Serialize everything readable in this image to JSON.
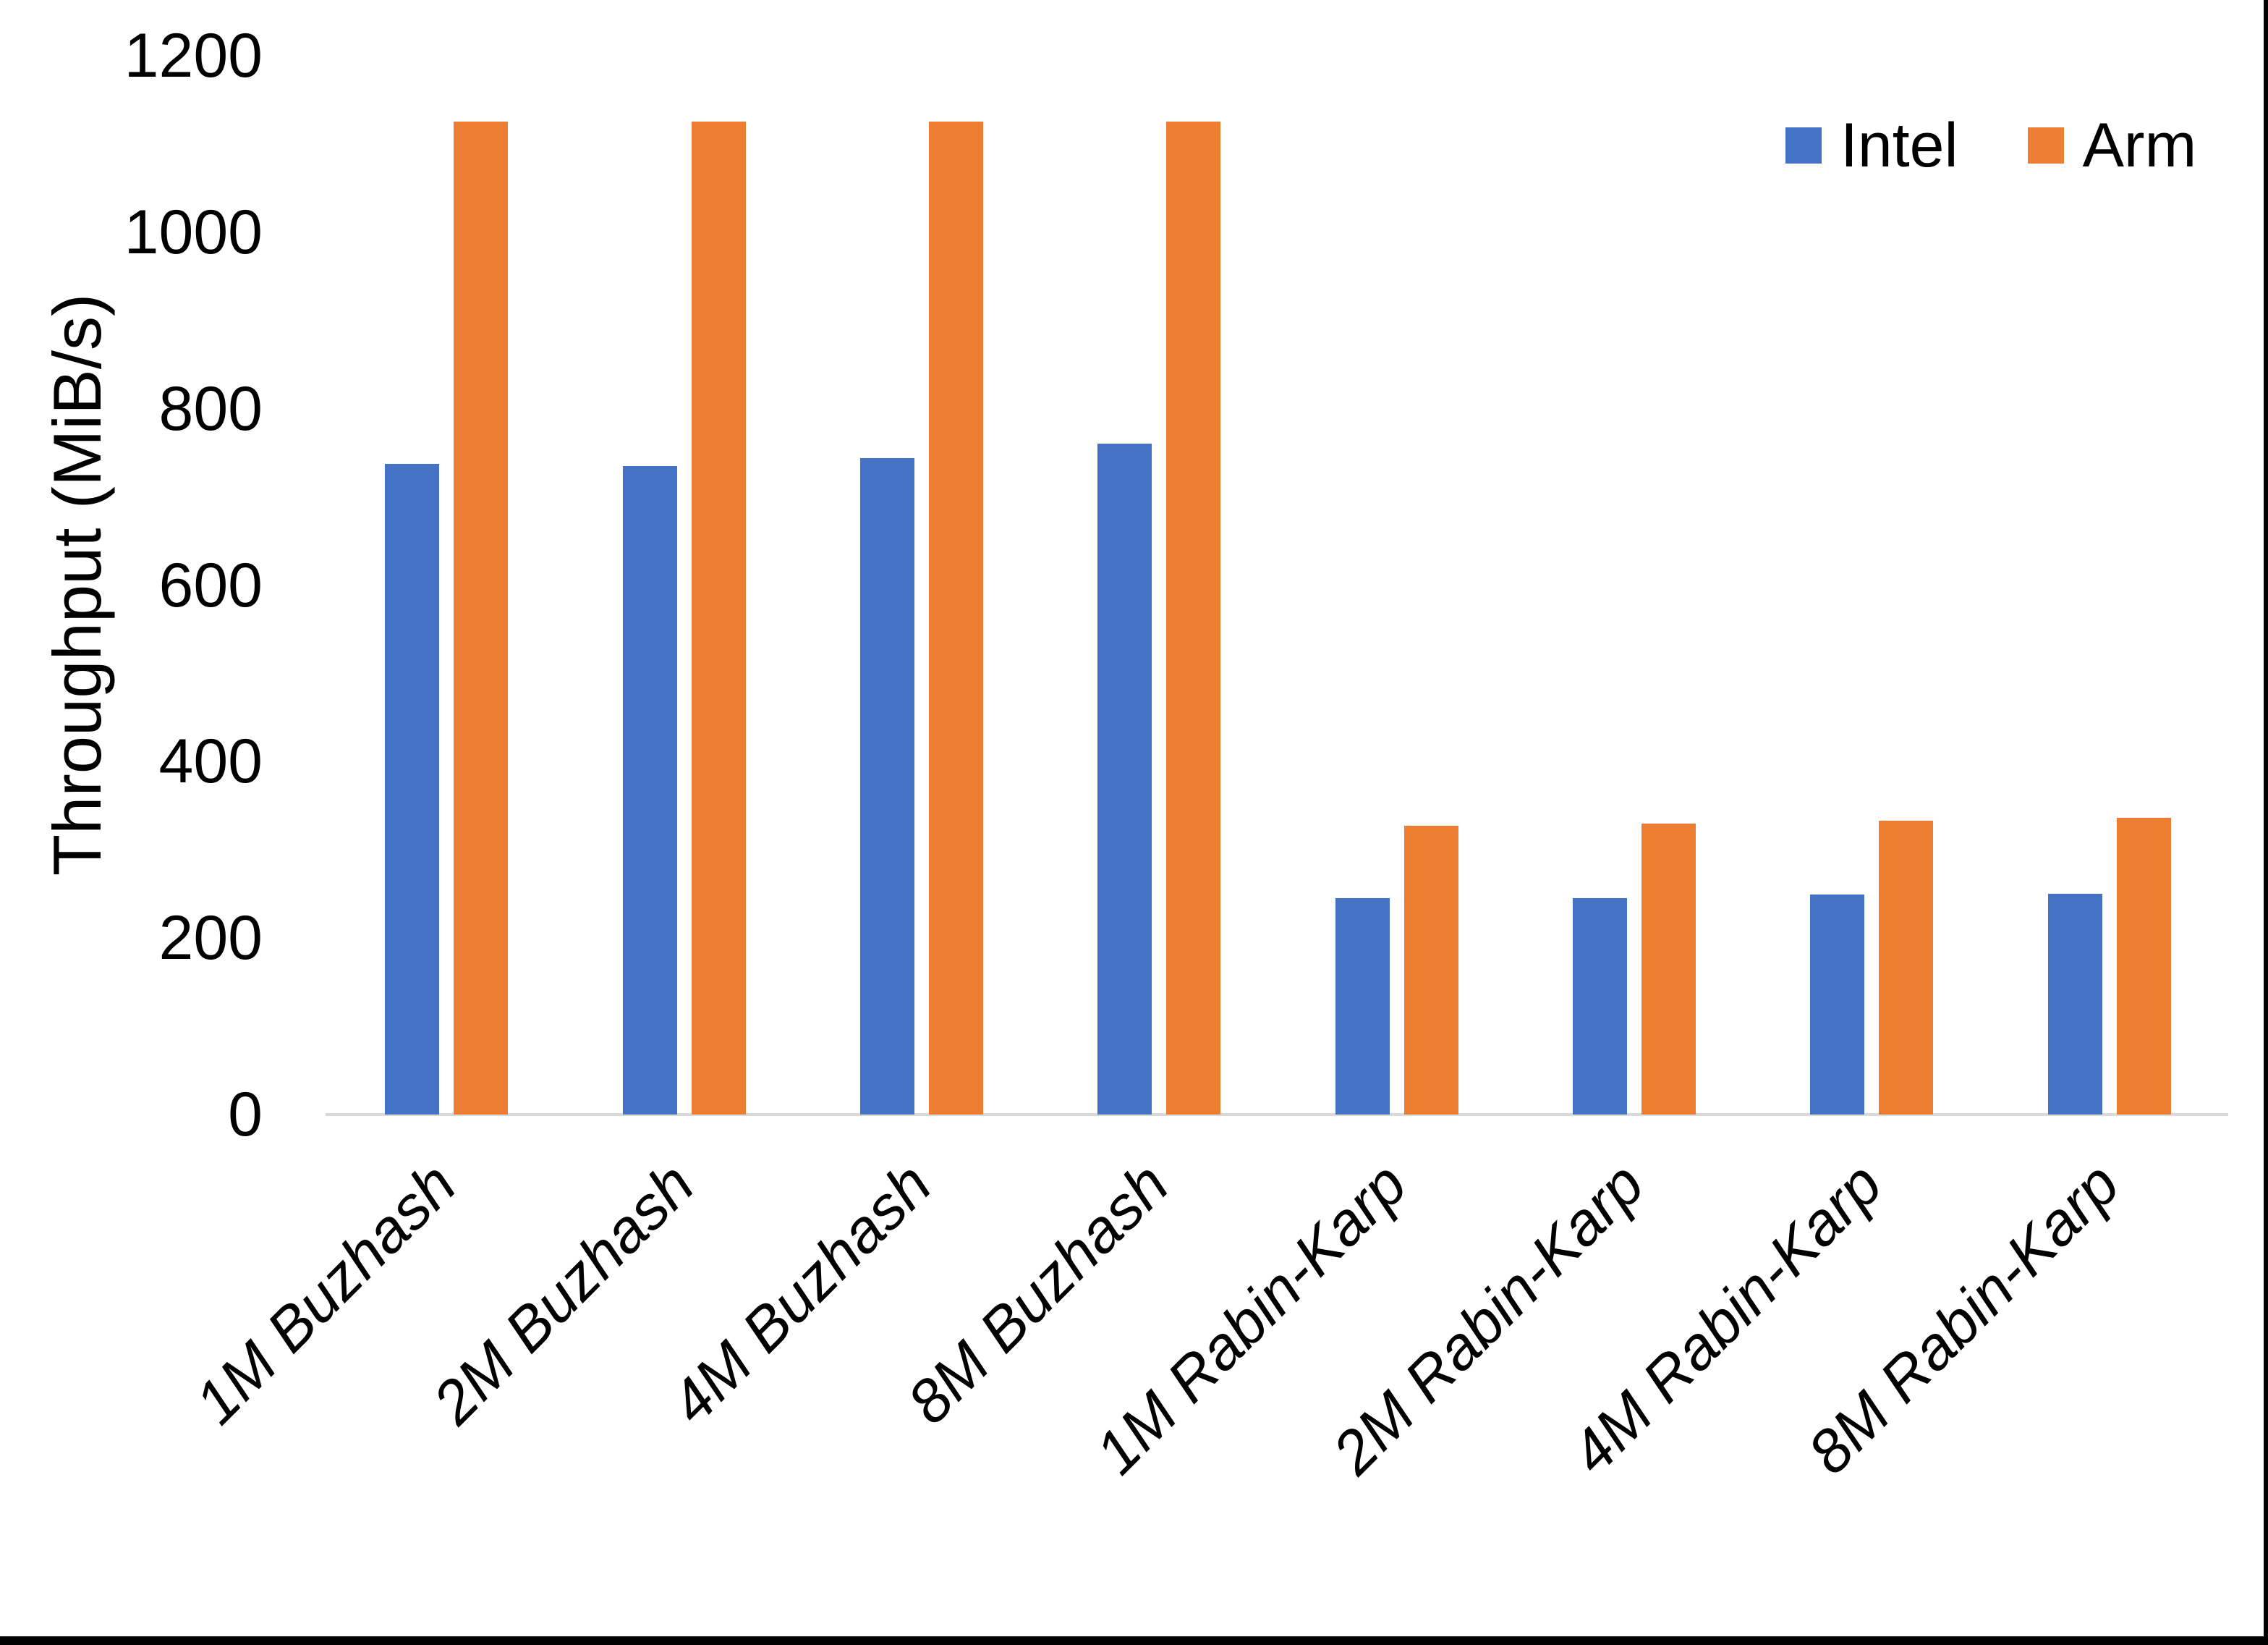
{
  "chart_data": {
    "type": "bar",
    "title": "",
    "xlabel": "",
    "ylabel": "Throughput (MiB/s)",
    "categories": [
      "1M Buzhash",
      "2M Buzhash",
      "4M Buzhash",
      "8M Buzhash",
      "1M Rabin-Karp",
      "2M Rabin-Karp",
      "4M Rabin-Karp",
      "8M Rabin-Karp"
    ],
    "series": [
      {
        "name": "Intel",
        "color": "#4472C4",
        "values": [
          737,
          735,
          744,
          760,
          245,
          245,
          249,
          250
        ]
      },
      {
        "name": "Arm",
        "color": "#ED7D31",
        "values": [
          1125,
          1125,
          1125,
          1125,
          327,
          330,
          333,
          336
        ]
      }
    ],
    "ylim": [
      0,
      1200
    ],
    "yticks": [
      0,
      200,
      400,
      600,
      800,
      1000,
      1200
    ],
    "grid": false,
    "legend_position": "top-right"
  },
  "colors": {
    "axis_line": "#D9D9D9",
    "text": "#000000",
    "screenshot_border": "#000000",
    "background": "#FFFFFF"
  }
}
